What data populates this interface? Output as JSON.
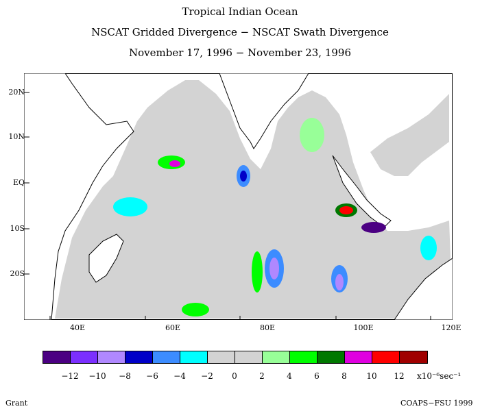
{
  "titles": {
    "line1": "Tropical Indian Ocean",
    "line2": "NSCAT Gridded Divergence − NSCAT Swath Divergence",
    "line3": "November 17, 1996 − November 23, 1996"
  },
  "lat_labels": [
    "20N",
    "10N",
    "EQ",
    "10S",
    "20S"
  ],
  "lon_labels": [
    "40E",
    "60E",
    "80E",
    "100E",
    "120E"
  ],
  "colorbar": {
    "colors": [
      "#4b0082",
      "#7b2fff",
      "#b088ff",
      "#0000c8",
      "#3c8cff",
      "#00ffff",
      "#d3d3d3",
      "#d3d3d3",
      "#98ff98",
      "#00ff00",
      "#007800",
      "#e000e0",
      "#ff0000",
      "#a00000"
    ],
    "labels": [
      "−12",
      "−10",
      "−8",
      "−6",
      "−4",
      "−2",
      "0",
      "2",
      "4",
      "6",
      "8",
      "10",
      "12"
    ],
    "units": "x10⁻⁶sec⁻¹"
  },
  "footer": {
    "left": "Grant",
    "right": "COAPS−FSU 1999"
  }
}
